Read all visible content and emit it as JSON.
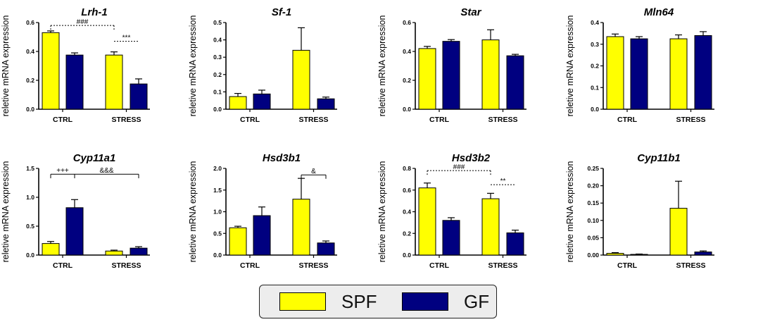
{
  "colors": {
    "SPF": "#ffff00",
    "GF": "#000080",
    "axis": "#000000"
  },
  "legend": {
    "entries": [
      {
        "label": "SPF",
        "color": "#ffff00"
      },
      {
        "label": "GF",
        "color": "#000080"
      }
    ]
  },
  "chart_data": [
    {
      "type": "bar",
      "title": "Lrh-1",
      "ylabel": "reletive mRNA expression",
      "categories": [
        "CTRL",
        "STRESS"
      ],
      "ylim": [
        0,
        0.6
      ],
      "yticks": [
        "0.0",
        "0.2",
        "0.4",
        "0.6"
      ],
      "series": [
        {
          "name": "SPF",
          "values": [
            0.53,
            0.375
          ],
          "errors": [
            0.012,
            0.022
          ]
        },
        {
          "name": "GF",
          "values": [
            0.375,
            0.175
          ],
          "errors": [
            0.015,
            0.035
          ]
        }
      ],
      "annotations": [
        {
          "text": "###",
          "style": "dotted",
          "from": [
            0,
            0
          ],
          "to": [
            1,
            0
          ],
          "level": 0.58,
          "tick_drop": 0.03
        },
        {
          "text": "***",
          "style": "dotted",
          "from": [
            1,
            0
          ],
          "to": [
            1,
            1
          ],
          "level": 0.47,
          "tick_drop": 0
        }
      ]
    },
    {
      "type": "bar",
      "title": "Sf-1",
      "ylabel": "reletive mRNA expression",
      "categories": [
        "CTRL",
        "STRESS"
      ],
      "ylim": [
        0,
        0.5
      ],
      "yticks": [
        "0.0",
        "0.1",
        "0.2",
        "0.3",
        "0.4",
        "0.5"
      ],
      "series": [
        {
          "name": "SPF",
          "values": [
            0.073,
            0.34
          ],
          "errors": [
            0.018,
            0.13
          ]
        },
        {
          "name": "GF",
          "values": [
            0.088,
            0.06
          ],
          "errors": [
            0.022,
            0.01
          ]
        }
      ],
      "annotations": []
    },
    {
      "type": "bar",
      "title": "Star",
      "ylabel": "reletive mRNA expression",
      "categories": [
        "CTRL",
        "STRESS"
      ],
      "ylim": [
        0,
        0.6
      ],
      "yticks": [
        "0.0",
        "0.2",
        "0.4",
        "0.6"
      ],
      "series": [
        {
          "name": "SPF",
          "values": [
            0.42,
            0.48
          ],
          "errors": [
            0.015,
            0.07
          ]
        },
        {
          "name": "GF",
          "values": [
            0.47,
            0.37
          ],
          "errors": [
            0.012,
            0.01
          ]
        }
      ],
      "annotations": []
    },
    {
      "type": "bar",
      "title": "Mln64",
      "ylabel": "reletive mRNA expression",
      "categories": [
        "CTRL",
        "STRESS"
      ],
      "ylim": [
        0,
        0.4
      ],
      "yticks": [
        "0.0",
        "0.1",
        "0.2",
        "0.3",
        "0.4"
      ],
      "series": [
        {
          "name": "SPF",
          "values": [
            0.335,
            0.325
          ],
          "errors": [
            0.012,
            0.018
          ]
        },
        {
          "name": "GF",
          "values": [
            0.325,
            0.34
          ],
          "errors": [
            0.01,
            0.018
          ]
        }
      ],
      "annotations": []
    },
    {
      "type": "bar",
      "title": "Cyp11a1",
      "ylabel": "reletive mRNA expression",
      "categories": [
        "CTRL",
        "STRESS"
      ],
      "ylim": [
        0,
        1.5
      ],
      "yticks": [
        "0.0",
        "0.5",
        "1.0",
        "1.5"
      ],
      "series": [
        {
          "name": "SPF",
          "values": [
            0.2,
            0.07
          ],
          "errors": [
            0.035,
            0.015
          ]
        },
        {
          "name": "GF",
          "values": [
            0.82,
            0.12
          ],
          "errors": [
            0.14,
            0.025
          ]
        }
      ],
      "annotations": [
        {
          "text": "+++",
          "style": "solid",
          "from": [
            0,
            0
          ],
          "to": [
            0,
            1
          ],
          "level": 1.4,
          "tick_drop": 0.07
        },
        {
          "text": "&&&",
          "style": "solid",
          "from": [
            0,
            1
          ],
          "to": [
            1,
            1
          ],
          "level": 1.4,
          "tick_drop": 0.07
        }
      ]
    },
    {
      "type": "bar",
      "title": "Hsd3b1",
      "ylabel": "reletive mRNA expression",
      "categories": [
        "CTRL",
        "STRESS"
      ],
      "ylim": [
        0,
        2.0
      ],
      "yticks": [
        "0.0",
        "0.5",
        "1.0",
        "1.5",
        "2.0"
      ],
      "series": [
        {
          "name": "SPF",
          "values": [
            0.63,
            1.29
          ],
          "errors": [
            0.035,
            0.48
          ]
        },
        {
          "name": "GF",
          "values": [
            0.91,
            0.28
          ],
          "errors": [
            0.2,
            0.045
          ]
        }
      ],
      "annotations": [
        {
          "text": "&",
          "style": "solid",
          "from": [
            1,
            0
          ],
          "to": [
            1,
            1
          ],
          "level": 1.85,
          "tick_drop": 0.09
        }
      ]
    },
    {
      "type": "bar",
      "title": "Hsd3b2",
      "ylabel": "reletive mRNA expression",
      "categories": [
        "CTRL",
        "STRESS"
      ],
      "ylim": [
        0,
        0.8
      ],
      "yticks": [
        "0.0",
        "0.2",
        "0.4",
        "0.6",
        "0.8"
      ],
      "series": [
        {
          "name": "SPF",
          "values": [
            0.62,
            0.52
          ],
          "errors": [
            0.045,
            0.05
          ]
        },
        {
          "name": "GF",
          "values": [
            0.32,
            0.205
          ],
          "errors": [
            0.025,
            0.025
          ]
        }
      ],
      "annotations": [
        {
          "text": "###",
          "style": "dotted",
          "from": [
            0,
            0
          ],
          "to": [
            1,
            0
          ],
          "level": 0.78,
          "tick_drop": 0.04
        },
        {
          "text": "**",
          "style": "dotted",
          "from": [
            1,
            0
          ],
          "to": [
            1,
            1
          ],
          "level": 0.65,
          "tick_drop": 0
        }
      ]
    },
    {
      "type": "bar",
      "title": "Cyp11b1",
      "ylabel": "reletive mRNA expression",
      "categories": [
        "CTRL",
        "STRESS"
      ],
      "ylim": [
        0,
        0.25
      ],
      "yticks": [
        "0.00",
        "0.05",
        "0.10",
        "0.15",
        "0.20",
        "0.25"
      ],
      "series": [
        {
          "name": "SPF",
          "values": [
            0.005,
            0.135
          ],
          "errors": [
            0.002,
            0.078
          ]
        },
        {
          "name": "GF",
          "values": [
            0.002,
            0.009
          ],
          "errors": [
            0.001,
            0.003
          ]
        }
      ],
      "annotations": []
    }
  ]
}
